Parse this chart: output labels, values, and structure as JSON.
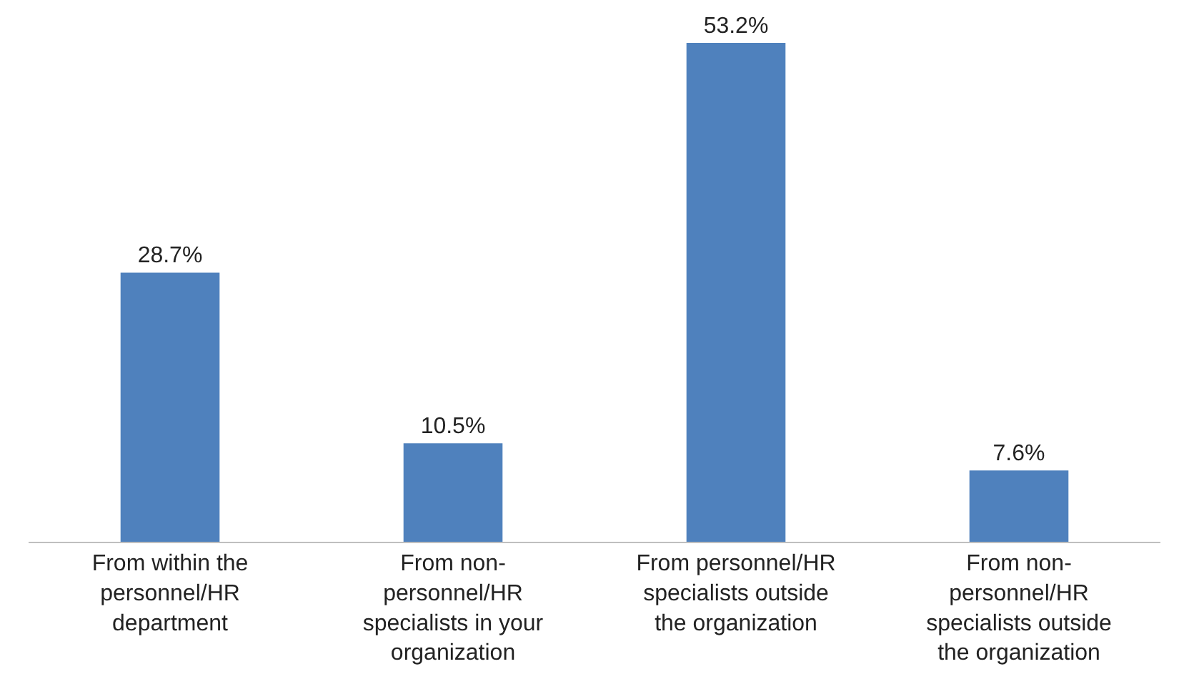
{
  "chart_data": {
    "type": "bar",
    "categories": [
      "From within the personnel/HR department",
      "From non-personnel/HR specialists in your organization",
      "From personnel/HR specialists outside the organization",
      "From non-personnel/HR specialists outside the organization"
    ],
    "values": [
      28.7,
      10.5,
      53.2,
      7.6
    ],
    "value_labels": [
      "28.7%",
      "10.5%",
      "53.2%",
      "7.6%"
    ],
    "color": "#4f81bd",
    "tick_labels": "x"
  }
}
